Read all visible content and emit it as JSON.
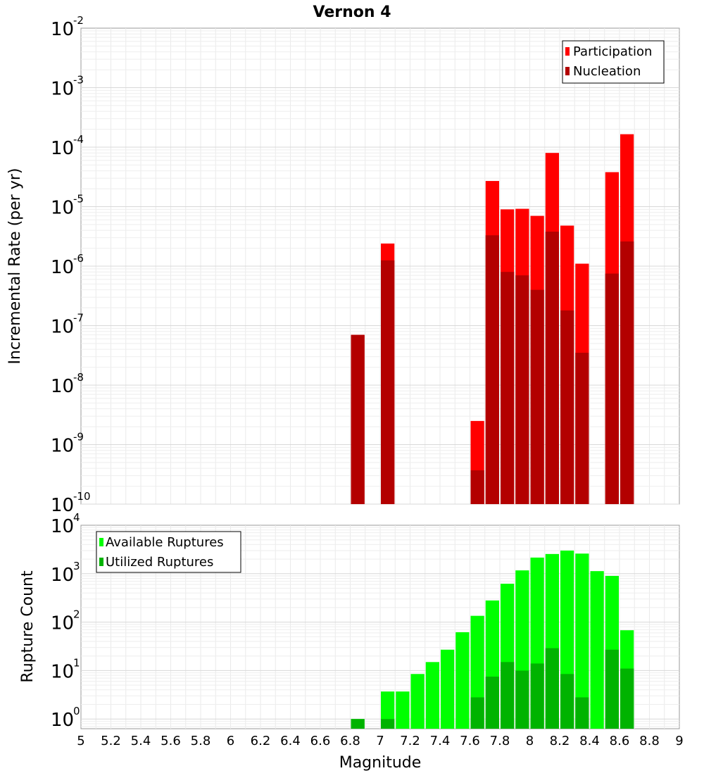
{
  "title": "Vernon 4",
  "top_chart": {
    "ylabel": "Incremental Rate (per yr)",
    "yaxis": {
      "scale": "log",
      "min_exp": -10,
      "max_exp": -2,
      "tick_base": "10"
    },
    "legend": {
      "position": "top-right",
      "items": [
        {
          "label": "Participation",
          "color": "#ff0000"
        },
        {
          "label": "Nucleation",
          "color": "#b30000"
        }
      ]
    },
    "tick_exponent_labels": [
      "-10",
      "-9",
      "-8",
      "-7",
      "-6",
      "-5",
      "-4",
      "-3",
      "-2"
    ]
  },
  "bottom_chart": {
    "ylabel": "Rupture Count",
    "yaxis": {
      "scale": "log",
      "min_exp": -0.2,
      "max_exp": 4,
      "tick_base": "10"
    },
    "legend": {
      "position": "top-left",
      "items": [
        {
          "label": "Available Ruptures",
          "color": "#00ff00"
        },
        {
          "label": "Utilized Ruptures",
          "color": "#00b300"
        }
      ]
    },
    "tick_exponent_labels": [
      "0",
      "1",
      "2",
      "3",
      "4"
    ]
  },
  "xaxis": {
    "label": "Magnitude",
    "range": [
      5,
      9
    ],
    "tick_labels": [
      "5",
      "5.2",
      "5.4",
      "5.6",
      "5.8",
      "6",
      "6.2",
      "6.4",
      "6.6",
      "6.8",
      "7",
      "7.2",
      "7.4",
      "7.6",
      "7.8",
      "8",
      "8.2",
      "8.4",
      "8.6",
      "8.8",
      "9"
    ]
  },
  "chart_data": [
    {
      "type": "bar",
      "yscale": "log",
      "ylabel": "Incremental Rate (per yr)",
      "xlabel": "",
      "xlim": [
        5,
        9
      ],
      "ylim": [
        1e-10,
        0.01
      ],
      "bin_width": 0.1,
      "x": [
        6.85,
        7.05,
        7.65,
        7.75,
        7.85,
        7.95,
        8.05,
        8.15,
        8.25,
        8.35,
        8.55,
        8.65
      ],
      "series": [
        {
          "name": "Participation",
          "color": "#ff0000",
          "values": [
            7e-08,
            2.4e-06,
            2.5e-09,
            2.7e-05,
            9e-06,
            9.2e-06,
            7e-06,
            8e-05,
            4.8e-06,
            1.1e-06,
            3.8e-05,
            0.000165
          ]
        },
        {
          "name": "Nucleation",
          "color": "#b30000",
          "values": [
            7e-08,
            1.25e-06,
            3.7e-10,
            3.3e-06,
            8e-07,
            7e-07,
            4e-07,
            3.8e-06,
            1.8e-07,
            3.5e-08,
            7.5e-07,
            2.6e-06
          ]
        }
      ]
    },
    {
      "type": "bar",
      "yscale": "log",
      "ylabel": "Rupture Count",
      "xlabel": "Magnitude",
      "xlim": [
        5,
        9
      ],
      "ylim": [
        0.63,
        10000
      ],
      "bin_width": 0.1,
      "x": [
        6.85,
        7.05,
        7.15,
        7.25,
        7.35,
        7.45,
        7.55,
        7.65,
        7.75,
        7.85,
        7.95,
        8.05,
        8.15,
        8.25,
        8.35,
        8.45,
        8.55,
        8.65
      ],
      "series": [
        {
          "name": "Available Ruptures",
          "color": "#00ff00",
          "values": [
            1,
            3.7,
            3.7,
            8.5,
            15,
            27,
            62,
            135,
            280,
            620,
            1170,
            2150,
            2550,
            3000,
            2600,
            1130,
            900,
            68
          ]
        },
        {
          "name": "Utilized Ruptures",
          "color": "#00b300",
          "values": [
            1,
            1,
            0,
            0,
            0,
            0,
            0,
            2.8,
            7.5,
            15,
            10,
            14,
            29,
            8.5,
            2.8,
            0,
            27,
            11
          ]
        }
      ]
    }
  ]
}
